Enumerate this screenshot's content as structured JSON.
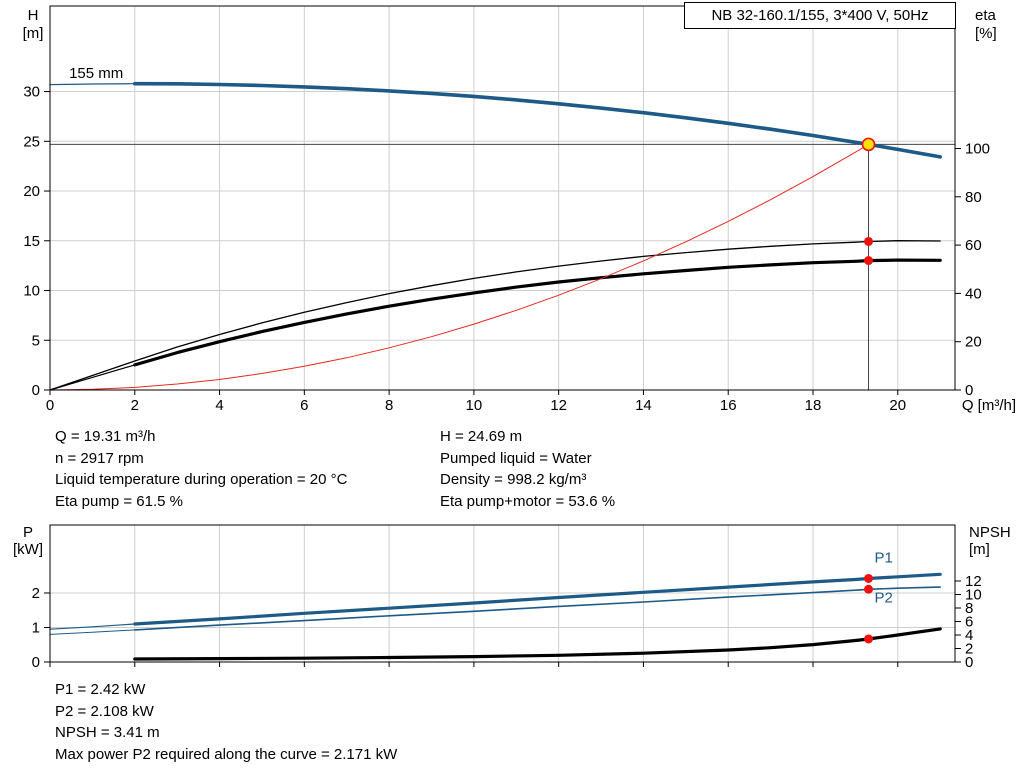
{
  "colors": {
    "blue": "#1d5a87",
    "black": "#000000",
    "red": "#e8281e",
    "dot_red": "#ee1111",
    "duty_yellow": "#ffe000",
    "grid": "#cfcfcf",
    "guide": "#444444"
  },
  "operating_data": {
    "col1": [
      "Q = 19.31 m³/h",
      "n = 2917 rpm",
      "Liquid temperature during operation = 20 °C",
      "Eta pump = 61.5 %"
    ],
    "col2": [
      "H = 24.69 m",
      "Pumped liquid = Water",
      "Density = 998.2 kg/m³",
      "Eta pump+motor = 53.6 %"
    ]
  },
  "power_data": [
    "P1 = 2.42 kW",
    "P2 = 2.108 kW",
    "NPSH = 3.41 m",
    "Max power P2 required along the curve = 2.171 kW"
  ],
  "chart_data": [
    {
      "type": "line",
      "title": "NB 32-160.1/155, 3*400 V, 50Hz",
      "xlabel": "Q [m³/h]",
      "xlim": [
        0,
        21.35
      ],
      "x_ticks": [
        0,
        2,
        4,
        6,
        8,
        10,
        12,
        14,
        16,
        18,
        20
      ],
      "grid": true,
      "axes": {
        "left": {
          "title": [
            "H",
            "[m]"
          ],
          "lim": [
            0,
            38.6
          ],
          "ticks": [
            0,
            5,
            10,
            15,
            20,
            25,
            30
          ]
        },
        "right": {
          "title": [
            "eta",
            "[%]"
          ],
          "lim": [
            0,
            159
          ],
          "ticks": [
            0,
            20,
            40,
            60,
            80,
            100
          ]
        }
      },
      "series": [
        {
          "name": "head-curve-leadin",
          "axis": "left",
          "color": "#1d5a87",
          "width": 1.2,
          "points": [
            [
              0,
              30.7
            ],
            [
              1,
              30.76
            ],
            [
              2,
              30.79
            ]
          ]
        },
        {
          "name": "head-curve",
          "axis": "left",
          "color": "#1d5a87",
          "width": 3.6,
          "points": [
            [
              2,
              30.79
            ],
            [
              3,
              30.78
            ],
            [
              4,
              30.71
            ],
            [
              5,
              30.61
            ],
            [
              6,
              30.47
            ],
            [
              7,
              30.29
            ],
            [
              8,
              30.07
            ],
            [
              9,
              29.81
            ],
            [
              10,
              29.51
            ],
            [
              11,
              29.16
            ],
            [
              12,
              28.77
            ],
            [
              13,
              28.34
            ],
            [
              14,
              27.87
            ],
            [
              15,
              27.36
            ],
            [
              16,
              26.81
            ],
            [
              17,
              26.22
            ],
            [
              18,
              25.58
            ],
            [
              19,
              24.9
            ],
            [
              19.31,
              24.69
            ],
            [
              20,
              24.19
            ],
            [
              21,
              23.43
            ]
          ]
        },
        {
          "name": "eta-pump-curve",
          "axis": "right",
          "color": "#000000",
          "width": 1.3,
          "points": [
            [
              0,
              0
            ],
            [
              1,
              6
            ],
            [
              2,
              12
            ],
            [
              3,
              17.8
            ],
            [
              4,
              23
            ],
            [
              5,
              27.8
            ],
            [
              6,
              32.2
            ],
            [
              7,
              36.2
            ],
            [
              8,
              39.9
            ],
            [
              9,
              43.2
            ],
            [
              10,
              46.2
            ],
            [
              11,
              48.9
            ],
            [
              12,
              51.3
            ],
            [
              13,
              53.4
            ],
            [
              14,
              55.3
            ],
            [
              15,
              56.9
            ],
            [
              16,
              58.3
            ],
            [
              17,
              59.5
            ],
            [
              18,
              60.5
            ],
            [
              19,
              61.2
            ],
            [
              19.31,
              61.5
            ],
            [
              20,
              61.8
            ],
            [
              21,
              61.7
            ]
          ]
        },
        {
          "name": "eta-pump-motor-curve-leadin",
          "axis": "right",
          "color": "#000000",
          "width": 1.2,
          "points": [
            [
              0,
              0
            ],
            [
              1,
              5.2
            ],
            [
              2,
              10.4
            ]
          ]
        },
        {
          "name": "eta-pump-motor-curve",
          "axis": "right",
          "color": "#000000",
          "width": 3.2,
          "points": [
            [
              2,
              10.4
            ],
            [
              3,
              15.5
            ],
            [
              4,
              20
            ],
            [
              5,
              24.2
            ],
            [
              6,
              28
            ],
            [
              7,
              31.5
            ],
            [
              8,
              34.7
            ],
            [
              9,
              37.6
            ],
            [
              10,
              40.2
            ],
            [
              11,
              42.6
            ],
            [
              12,
              44.7
            ],
            [
              13,
              46.5
            ],
            [
              14,
              48.1
            ],
            [
              15,
              49.5
            ],
            [
              16,
              50.8
            ],
            [
              17,
              51.8
            ],
            [
              18,
              52.7
            ],
            [
              19,
              53.3
            ],
            [
              19.31,
              53.6
            ],
            [
              20,
              53.8
            ],
            [
              21,
              53.7
            ]
          ]
        },
        {
          "name": "system-curve",
          "axis": "left",
          "color": "#e8281e",
          "width": 1,
          "points": [
            [
              0,
              0
            ],
            [
              1,
              0.07
            ],
            [
              2,
              0.26
            ],
            [
              3,
              0.6
            ],
            [
              4,
              1.06
            ],
            [
              5,
              1.66
            ],
            [
              6,
              2.38
            ],
            [
              7,
              3.24
            ],
            [
              8,
              4.24
            ],
            [
              9,
              5.36
            ],
            [
              10,
              6.62
            ],
            [
              11,
              8.01
            ],
            [
              12,
              9.53
            ],
            [
              13,
              11.19
            ],
            [
              14,
              12.98
            ],
            [
              15,
              14.9
            ],
            [
              16,
              16.95
            ],
            [
              17,
              19.13
            ],
            [
              18,
              21.45
            ],
            [
              19,
              23.9
            ],
            [
              19.31,
              24.69
            ]
          ]
        }
      ],
      "guides": [
        {
          "name": "duty-head-line",
          "type": "hline",
          "y": 24.69,
          "x1": 0,
          "x2": 21.35,
          "color": "#444444",
          "width": 1
        },
        {
          "name": "duty-flow-line",
          "type": "vline",
          "x": 19.31,
          "y1": 0,
          "y2": 24.69,
          "color": "#444444",
          "width": 1
        }
      ],
      "markers": [
        {
          "name": "duty-point-marker",
          "axis": "left",
          "x": 19.31,
          "y": 24.69,
          "r": 6,
          "fill": "#ffe000",
          "stroke": "#ee1111",
          "sw": 1.6
        },
        {
          "name": "eta-pump-duty-dot",
          "axis": "right",
          "x": 19.31,
          "y": 61.5,
          "r": 4.5,
          "fill": "#ee1111"
        },
        {
          "name": "eta-pump-motor-duty-dot",
          "axis": "right",
          "x": 19.31,
          "y": 53.6,
          "r": 4.5,
          "fill": "#ee1111"
        }
      ],
      "labels": [
        {
          "name": "impeller-size-label",
          "text": "155 mm",
          "axis": "left",
          "x": 0.45,
          "y": 31.35,
          "color": "#000000"
        }
      ]
    },
    {
      "type": "line",
      "title": "",
      "xlabel": "",
      "xlim": [
        0,
        21.35
      ],
      "x_ticks": [
        0,
        2,
        4,
        6,
        8,
        10,
        12,
        14,
        16,
        18,
        20
      ],
      "grid": true,
      "axes": {
        "left": {
          "title": [
            "P",
            "[kW]"
          ],
          "lim": [
            0,
            3.97
          ],
          "ticks": [
            0,
            1,
            2
          ]
        },
        "right": {
          "title": [
            "NPSH",
            "[m]"
          ],
          "lim": [
            0,
            20.3
          ],
          "ticks": [
            0,
            2,
            4,
            6,
            8,
            10,
            12
          ]
        }
      },
      "series": [
        {
          "name": "p1-curve-leadin",
          "axis": "left",
          "color": "#1d5a87",
          "width": 1.2,
          "points": [
            [
              0,
              0.95
            ],
            [
              1,
              1.02
            ],
            [
              2,
              1.1
            ]
          ]
        },
        {
          "name": "p1-curve",
          "axis": "left",
          "color": "#1d5a87",
          "width": 3.2,
          "points": [
            [
              2,
              1.1
            ],
            [
              4,
              1.25
            ],
            [
              6,
              1.41
            ],
            [
              8,
              1.56
            ],
            [
              10,
              1.71
            ],
            [
              12,
              1.87
            ],
            [
              14,
              2.02
            ],
            [
              16,
              2.17
            ],
            [
              18,
              2.32
            ],
            [
              19,
              2.39
            ],
            [
              19.31,
              2.42
            ],
            [
              20,
              2.47
            ],
            [
              21,
              2.54
            ]
          ]
        },
        {
          "name": "p2-curve-leadin",
          "axis": "left",
          "color": "#1d5a87",
          "width": 1,
          "points": [
            [
              0,
              0.8
            ],
            [
              1,
              0.86
            ],
            [
              2,
              0.93
            ]
          ]
        },
        {
          "name": "p2-curve",
          "axis": "left",
          "color": "#1d5a87",
          "width": 1.6,
          "points": [
            [
              2,
              0.93
            ],
            [
              4,
              1.07
            ],
            [
              6,
              1.2
            ],
            [
              8,
              1.34
            ],
            [
              10,
              1.47
            ],
            [
              12,
              1.61
            ],
            [
              14,
              1.74
            ],
            [
              16,
              1.88
            ],
            [
              18,
              2.01
            ],
            [
              19,
              2.08
            ],
            [
              19.31,
              2.108
            ],
            [
              20,
              2.14
            ],
            [
              21,
              2.171
            ]
          ]
        },
        {
          "name": "npsh-curve",
          "axis": "right",
          "color": "#000000",
          "width": 3.2,
          "points": [
            [
              2,
              0.45
            ],
            [
              4,
              0.5
            ],
            [
              6,
              0.56
            ],
            [
              8,
              0.66
            ],
            [
              10,
              0.8
            ],
            [
              12,
              1.0
            ],
            [
              14,
              1.3
            ],
            [
              16,
              1.78
            ],
            [
              17,
              2.12
            ],
            [
              18,
              2.58
            ],
            [
              19,
              3.18
            ],
            [
              19.31,
              3.41
            ],
            [
              20,
              4.0
            ],
            [
              21,
              4.9
            ]
          ]
        }
      ],
      "guides": [],
      "markers": [
        {
          "name": "p1-duty-dot",
          "axis": "left",
          "x": 19.31,
          "y": 2.42,
          "r": 4.5,
          "fill": "#ee1111"
        },
        {
          "name": "p2-duty-dot",
          "axis": "left",
          "x": 19.31,
          "y": 2.108,
          "r": 4.5,
          "fill": "#ee1111"
        },
        {
          "name": "npsh-duty-dot",
          "axis": "right",
          "x": 19.31,
          "y": 3.41,
          "r": 4.5,
          "fill": "#ee1111"
        }
      ],
      "labels": [
        {
          "name": "p1-label",
          "text": "P1",
          "axis": "left",
          "x": 19.45,
          "y": 2.88,
          "color": "#1d5a87"
        },
        {
          "name": "p2-label",
          "text": "P2",
          "axis": "left",
          "x": 19.45,
          "y": 1.72,
          "color": "#1d5a87"
        }
      ]
    }
  ]
}
